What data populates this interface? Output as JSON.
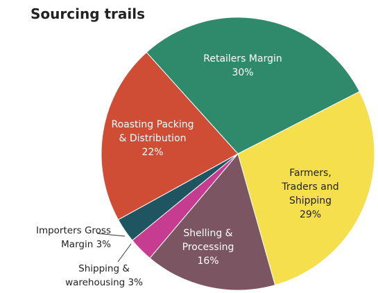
{
  "chart_data": {
    "type": "pie",
    "title": "Sourcing trails",
    "categories": [
      "Retailers Margin",
      "Farmers, Traders and Shipping",
      "Shelling & Processing",
      "Shipping & warehousing",
      "Importers Gross Margin",
      "Roasting Packing & Distribution"
    ],
    "values": [
      30,
      29,
      16,
      3,
      3,
      22
    ],
    "value_labels": [
      "30%",
      "29%",
      "16%",
      "3%",
      "3%",
      "22%"
    ],
    "colors": [
      "#2e8a6a",
      "#f5df4d",
      "#7b5562",
      "#c63c91",
      "#1e5561",
      "#cf4c35"
    ]
  }
}
